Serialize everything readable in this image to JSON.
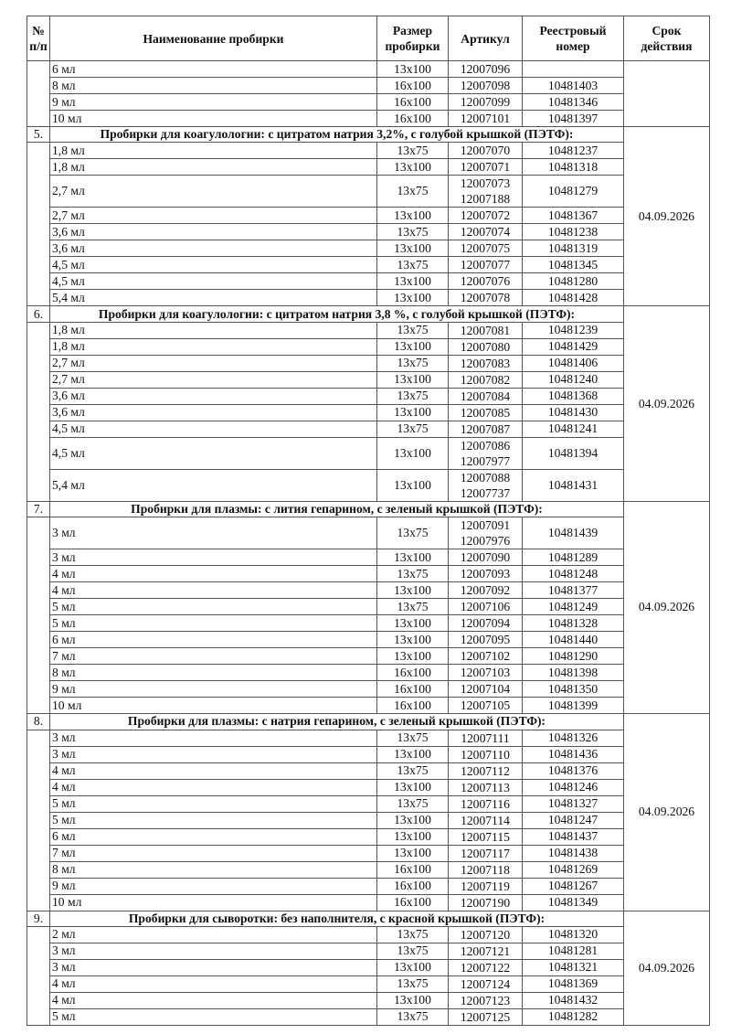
{
  "header": {
    "num": "№ п/п",
    "name": "Наименование пробирки",
    "size": "Размер пробирки",
    "article": "Артикул",
    "reg": "Реестровый номер",
    "date": "Срок действия"
  },
  "sections": [
    {
      "number": "",
      "title": "",
      "date": "",
      "rows": [
        {
          "name": "6 мл",
          "size": "13x100",
          "articles": [
            "12007096"
          ],
          "reg": ""
        },
        {
          "name": "8 мл",
          "size": "16x100",
          "articles": [
            "12007098"
          ],
          "reg": "10481403"
        },
        {
          "name": "9 мл",
          "size": "16x100",
          "articles": [
            "12007099"
          ],
          "reg": "10481346"
        },
        {
          "name": "10 мл",
          "size": "16x100",
          "articles": [
            "12007101"
          ],
          "reg": "10481397"
        }
      ]
    },
    {
      "number": "5.",
      "title": "Пробирки для коагулологии: с цитратом натрия 3,2%, с голубой крышкой (ПЭТФ):",
      "date": "04.09.2026",
      "rows": [
        {
          "name": "1,8 мл",
          "size": "13x75",
          "articles": [
            "12007070"
          ],
          "reg": "10481237"
        },
        {
          "name": "1,8 мл",
          "size": "13x100",
          "articles": [
            "12007071"
          ],
          "reg": "10481318"
        },
        {
          "name": "2,7 мл",
          "size": "13x75",
          "articles": [
            "12007073",
            "12007188"
          ],
          "reg": "10481279"
        },
        {
          "name": "2,7 мл",
          "size": "13x100",
          "articles": [
            "12007072"
          ],
          "reg": "10481367"
        },
        {
          "name": "3,6 мл",
          "size": "13x75",
          "articles": [
            "12007074"
          ],
          "reg": "10481238"
        },
        {
          "name": "3,6 мл",
          "size": "13x100",
          "articles": [
            "12007075"
          ],
          "reg": "10481319"
        },
        {
          "name": "4,5 мл",
          "size": "13x75",
          "articles": [
            "12007077"
          ],
          "reg": "10481345"
        },
        {
          "name": "4,5 мл",
          "size": "13x100",
          "articles": [
            "12007076"
          ],
          "reg": "10481280"
        },
        {
          "name": "5,4 мл",
          "size": "13x100",
          "articles": [
            "12007078"
          ],
          "reg": "10481428"
        }
      ]
    },
    {
      "number": "6.",
      "title": "Пробирки для коагулологии: с цитратом натрия 3,8 %, с голубой крышкой (ПЭТФ):",
      "date": "04.09.2026",
      "rows": [
        {
          "name": "1,8 мл",
          "size": "13x75",
          "articles": [
            "12007081"
          ],
          "reg": "10481239"
        },
        {
          "name": "1,8 мл",
          "size": "13x100",
          "articles": [
            "12007080"
          ],
          "reg": "10481429"
        },
        {
          "name": "2,7 мл",
          "size": "13x75",
          "articles": [
            "12007083"
          ],
          "reg": "10481406"
        },
        {
          "name": "2,7 мл",
          "size": "13x100",
          "articles": [
            "12007082"
          ],
          "reg": "10481240"
        },
        {
          "name": "3,6 мл",
          "size": "13x75",
          "articles": [
            "12007084"
          ],
          "reg": "10481368"
        },
        {
          "name": "3,6 мл",
          "size": "13x100",
          "articles": [
            "12007085"
          ],
          "reg": "10481430"
        },
        {
          "name": "4,5 мл",
          "size": "13x75",
          "articles": [
            "12007087"
          ],
          "reg": "10481241"
        },
        {
          "name": "4,5 мл",
          "size": "13x100",
          "articles": [
            "12007086",
            "12007977"
          ],
          "reg": "10481394"
        },
        {
          "name": "5,4 мл",
          "size": "13x100",
          "articles": [
            "12007088",
            "12007737"
          ],
          "reg": "10481431"
        }
      ]
    },
    {
      "number": "7.",
      "title": "Пробирки для плазмы: с лития гепарином, с зеленый крышкой (ПЭТФ):",
      "date": "04.09.2026",
      "rows": [
        {
          "name": "3 мл",
          "size": "13x75",
          "articles": [
            "12007091",
            "12007976"
          ],
          "reg": "10481439"
        },
        {
          "name": "3 мл",
          "size": "13x100",
          "articles": [
            "12007090"
          ],
          "reg": "10481289"
        },
        {
          "name": "4 мл",
          "size": "13x75",
          "articles": [
            "12007093"
          ],
          "reg": "10481248"
        },
        {
          "name": "4 мл",
          "size": "13x100",
          "articles": [
            "12007092"
          ],
          "reg": "10481377"
        },
        {
          "name": "5 мл",
          "size": "13x75",
          "articles": [
            "12007106"
          ],
          "reg": "10481249"
        },
        {
          "name": "5 мл",
          "size": "13x100",
          "articles": [
            "12007094"
          ],
          "reg": "10481328"
        },
        {
          "name": "6 мл",
          "size": "13x100",
          "articles": [
            "12007095"
          ],
          "reg": "10481440"
        },
        {
          "name": "7 мл",
          "size": "13x100",
          "articles": [
            "12007102"
          ],
          "reg": "10481290"
        },
        {
          "name": "8 мл",
          "size": "16x100",
          "articles": [
            "12007103"
          ],
          "reg": "10481398"
        },
        {
          "name": "9 мл",
          "size": "16x100",
          "articles": [
            "12007104"
          ],
          "reg": "10481350"
        },
        {
          "name": "10 мл",
          "size": "16x100",
          "articles": [
            "12007105"
          ],
          "reg": "10481399"
        }
      ]
    },
    {
      "number": "8.",
      "title": "Пробирки для плазмы: с натрия гепарином, с зеленый крышкой (ПЭТФ):",
      "date": "04.09.2026",
      "rows": [
        {
          "name": "3 мл",
          "size": "13x75",
          "articles": [
            "12007111"
          ],
          "reg": "10481326"
        },
        {
          "name": "3 мл",
          "size": "13x100",
          "articles": [
            "12007110"
          ],
          "reg": "10481436"
        },
        {
          "name": "4 мл",
          "size": "13x75",
          "articles": [
            "12007112"
          ],
          "reg": "10481376"
        },
        {
          "name": "4 мл",
          "size": "13x100",
          "articles": [
            "12007113"
          ],
          "reg": "10481246"
        },
        {
          "name": "5 мл",
          "size": "13x75",
          "articles": [
            "12007116"
          ],
          "reg": "10481327"
        },
        {
          "name": "5 мл",
          "size": "13x100",
          "articles": [
            "12007114"
          ],
          "reg": "10481247"
        },
        {
          "name": "6 мл",
          "size": "13x100",
          "articles": [
            "12007115"
          ],
          "reg": "10481437"
        },
        {
          "name": "7 мл",
          "size": "13x100",
          "articles": [
            "12007117"
          ],
          "reg": "10481438"
        },
        {
          "name": "8 мл",
          "size": "16x100",
          "articles": [
            "12007118"
          ],
          "reg": "10481269"
        },
        {
          "name": "9 мл",
          "size": "16x100",
          "articles": [
            "12007119"
          ],
          "reg": "10481267"
        },
        {
          "name": "10 мл",
          "size": "16x100",
          "articles": [
            "12007190"
          ],
          "reg": "10481349"
        }
      ]
    },
    {
      "number": "9.",
      "title": "Пробирки для сыворотки: без наполнителя, с красной крышкой (ПЭТФ):",
      "date": "04.09.2026",
      "rows": [
        {
          "name": "2 мл",
          "size": "13x75",
          "articles": [
            "12007120"
          ],
          "reg": "10481320"
        },
        {
          "name": "3 мл",
          "size": "13x75",
          "articles": [
            "12007121"
          ],
          "reg": "10481281"
        },
        {
          "name": "3 мл",
          "size": "13x100",
          "articles": [
            "12007122"
          ],
          "reg": "10481321"
        },
        {
          "name": "4 мл",
          "size": "13x75",
          "articles": [
            "12007124"
          ],
          "reg": "10481369"
        },
        {
          "name": "4 мл",
          "size": "13x100",
          "articles": [
            "12007123"
          ],
          "reg": "10481432"
        },
        {
          "name": "5 мл",
          "size": "13x75",
          "articles": [
            "12007125"
          ],
          "reg": "10481282"
        }
      ]
    }
  ]
}
